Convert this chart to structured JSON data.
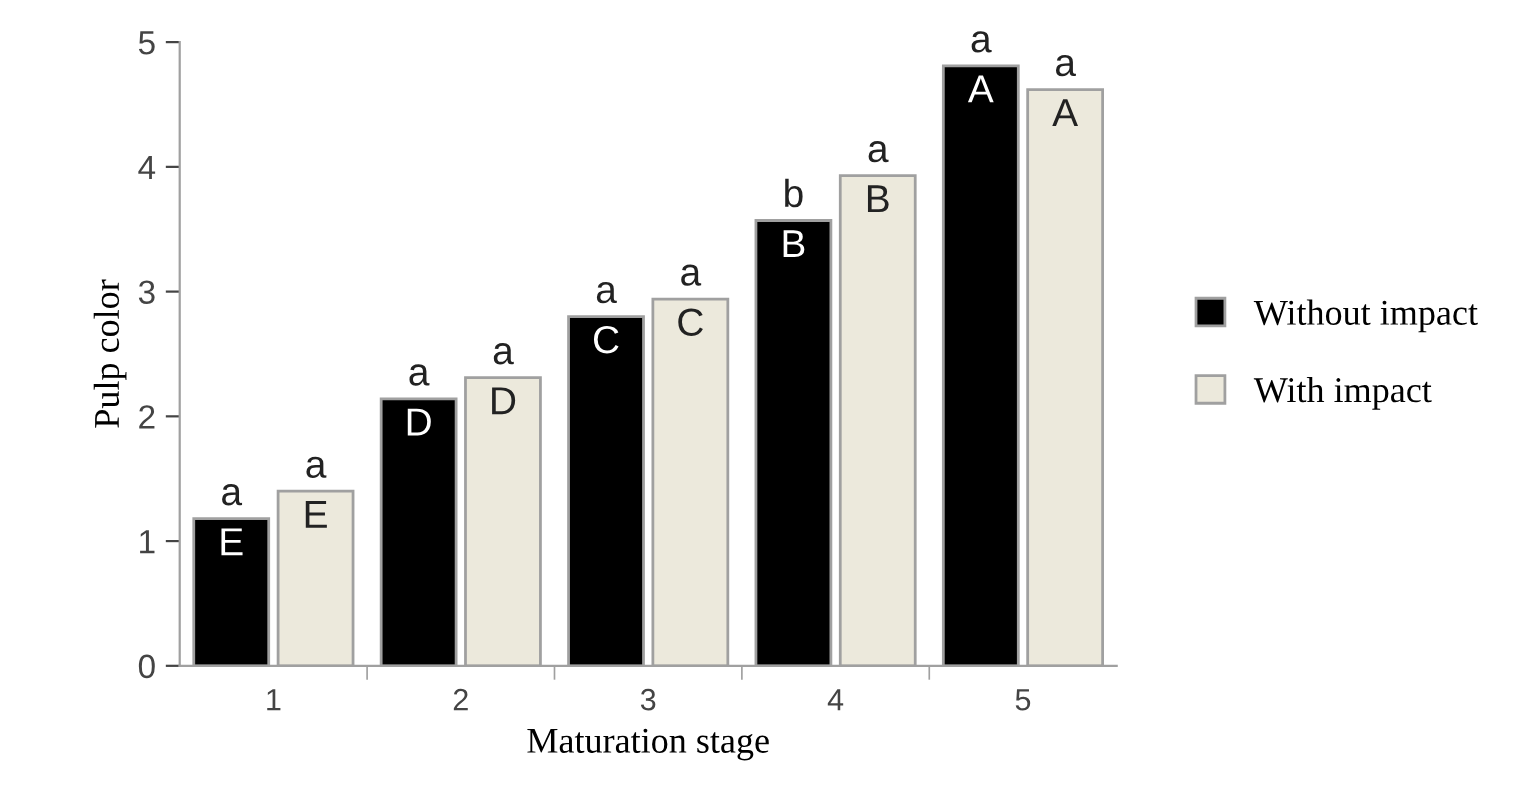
{
  "chart_data": {
    "type": "bar",
    "xlabel": "Maturation stage",
    "ylabel": "Pulp color",
    "categories": [
      "1",
      "2",
      "3",
      "4",
      "5"
    ],
    "series": [
      {
        "name": "Without impact",
        "color": "#000000",
        "values": [
          1.18,
          2.14,
          2.8,
          3.57,
          4.81
        ],
        "value_labels": [
          "E",
          "D",
          "C",
          "B",
          "A"
        ]
      },
      {
        "name": "With impact",
        "color": "#ece9dc",
        "values": [
          1.4,
          2.31,
          2.94,
          3.93,
          4.62
        ],
        "value_labels": [
          "E",
          "D",
          "C",
          "B",
          "A"
        ]
      }
    ],
    "annotations": [
      {
        "text": "a",
        "x": "1",
        "y": 1.18
      },
      {
        "text": "a",
        "x": "1",
        "y": 1.4
      },
      {
        "text": "a",
        "x": "2",
        "y": 2.14
      },
      {
        "text": "a",
        "x": "2",
        "y": 2.31
      },
      {
        "text": "a",
        "x": "3",
        "y": 2.8
      },
      {
        "text": "a",
        "x": "3",
        "y": 2.94
      },
      {
        "text": "b",
        "x": "4",
        "y": 3.57
      },
      {
        "text": "a",
        "x": "4",
        "y": 3.93
      },
      {
        "text": "a",
        "x": "5",
        "y": 4.81
      },
      {
        "text": "a",
        "x": "5",
        "y": 4.62
      }
    ],
    "ylim": [
      0,
      5
    ],
    "yticks": [
      0,
      1,
      2,
      3,
      4,
      5
    ],
    "grid": false,
    "legend": "right"
  }
}
